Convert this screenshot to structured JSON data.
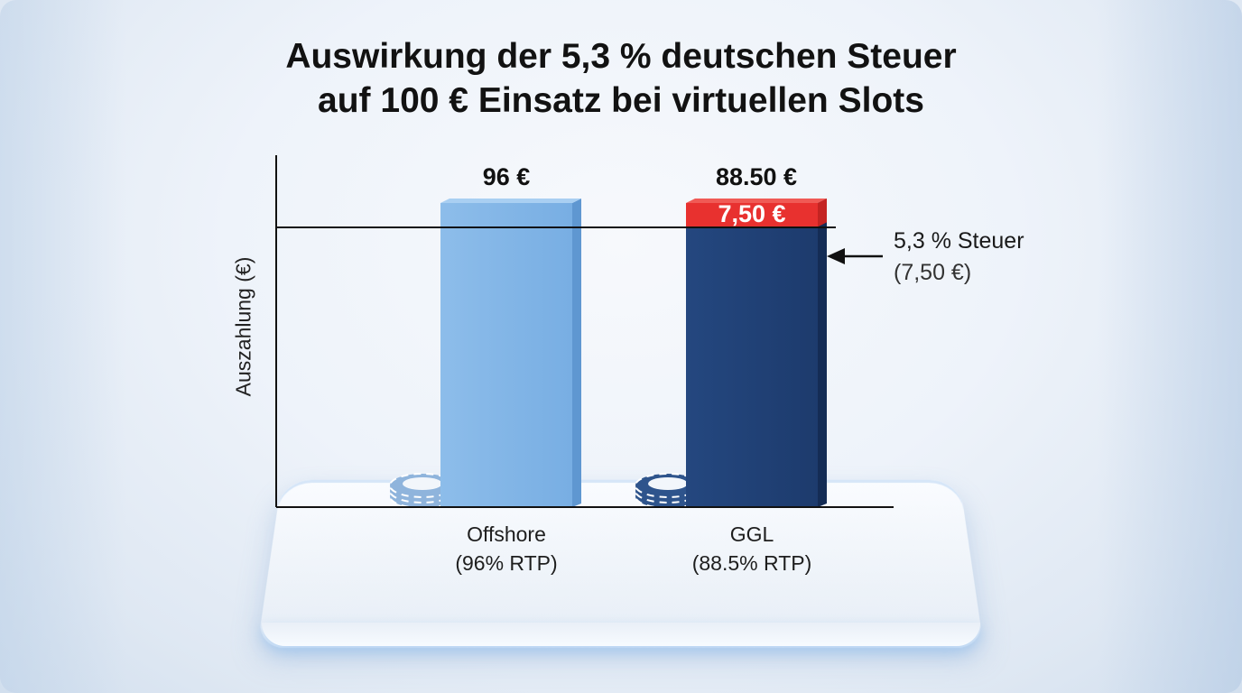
{
  "title_line1": "Auswirkung der 5,3 % deutschen Steuer",
  "title_line2": "auf 100 € Einsatz bei virtuellen Slots",
  "chart_data": {
    "type": "bar",
    "title": "Auswirkung der 5,3 % deutschen Steuer auf 100 € Einsatz bei virtuellen Slots",
    "xlabel": "",
    "ylabel": "Auszahlung (€)",
    "ylim": [
      0,
      100
    ],
    "grid": false,
    "categories": [
      "Offshore",
      "GGL"
    ],
    "category_sublabels": [
      "(96% RTP)",
      "(88.5% RTP)"
    ],
    "values": [
      96,
      88.5
    ],
    "value_labels": [
      "96 €",
      "88.50 €"
    ],
    "stacked_segment": {
      "category": "GGL",
      "value": 7.5,
      "label": "7,50 €",
      "color": "#e8312f"
    },
    "reference_line_value": 96,
    "colors": [
      "#7fb3e6",
      "#1f3f73"
    ],
    "annotation": {
      "line1": "5,3 % Steuer",
      "line2": "(7,50 €)"
    }
  }
}
